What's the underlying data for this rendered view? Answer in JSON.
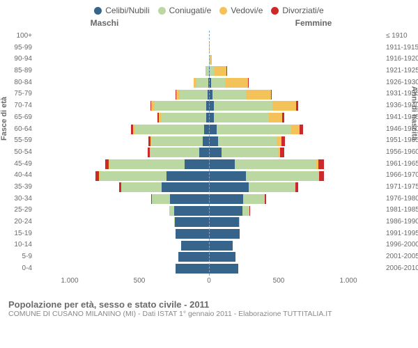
{
  "legend": {
    "items": [
      {
        "label": "Celibi/Nubili",
        "color": "#36648b"
      },
      {
        "label": "Coniugati/e",
        "color": "#bbd8a3"
      },
      {
        "label": "Vedovi/e",
        "color": "#f3c35a"
      },
      {
        "label": "Divorziati/e",
        "color": "#cc2a2a"
      }
    ]
  },
  "sex_labels": {
    "m": "Maschi",
    "f": "Femmine"
  },
  "y_title_left": "Fasce di età",
  "y_title_right": "Anni di nascita",
  "x_axis": {
    "ticks": [
      "1.000",
      "500",
      "0",
      "500",
      "1.000"
    ],
    "max": 1000
  },
  "title": "Popolazione per età, sesso e stato civile - 2011",
  "subtitle": "COMUNE DI CUSANO MILANINO (MI) - Dati ISTAT 1° gennaio 2011 - Elaborazione TUTTITALIA.IT",
  "colors": {
    "celibi": "#36648b",
    "coniugati": "#bbd8a3",
    "vedovi": "#f3c35a",
    "divorziati": "#cc2a2a",
    "grid": "#e0e0e0",
    "center": "#8aa4bd",
    "bg": "#ffffff"
  },
  "rows": [
    {
      "age": "100+",
      "birth": "≤ 1910",
      "m": [
        0,
        0,
        3,
        0
      ],
      "f": [
        0,
        0,
        8,
        0
      ]
    },
    {
      "age": "95-99",
      "birth": "1911-1915",
      "m": [
        0,
        2,
        10,
        0
      ],
      "f": [
        0,
        2,
        35,
        0
      ]
    },
    {
      "age": "90-94",
      "birth": "1916-1920",
      "m": [
        3,
        15,
        22,
        0
      ],
      "f": [
        5,
        18,
        100,
        0
      ]
    },
    {
      "age": "85-89",
      "birth": "1921-1925",
      "m": [
        8,
        95,
        45,
        0
      ],
      "f": [
        10,
        75,
        230,
        3
      ]
    },
    {
      "age": "80-84",
      "birth": "1926-1930",
      "m": [
        12,
        230,
        55,
        3
      ],
      "f": [
        22,
        170,
        280,
        6
      ]
    },
    {
      "age": "75-79",
      "birth": "1931-1935",
      "m": [
        18,
        370,
        45,
        5
      ],
      "f": [
        30,
        320,
        240,
        10
      ]
    },
    {
      "age": "70-74",
      "birth": "1936-1940",
      "m": [
        25,
        510,
        35,
        10
      ],
      "f": [
        40,
        470,
        190,
        15
      ]
    },
    {
      "age": "65-69",
      "birth": "1941-1945",
      "m": [
        30,
        480,
        22,
        12
      ],
      "f": [
        45,
        480,
        115,
        18
      ]
    },
    {
      "age": "60-64",
      "birth": "1946-1950",
      "m": [
        45,
        590,
        15,
        18
      ],
      "f": [
        60,
        580,
        70,
        25
      ]
    },
    {
      "age": "55-59",
      "birth": "1951-1955",
      "m": [
        60,
        500,
        8,
        22
      ],
      "f": [
        80,
        510,
        40,
        30
      ]
    },
    {
      "age": "50-54",
      "birth": "1956-1960",
      "m": [
        95,
        470,
        5,
        25
      ],
      "f": [
        110,
        490,
        22,
        35
      ]
    },
    {
      "age": "45-49",
      "birth": "1961-1965",
      "m": [
        180,
        560,
        3,
        30
      ],
      "f": [
        180,
        580,
        12,
        40
      ]
    },
    {
      "age": "40-44",
      "birth": "1966-1970",
      "m": [
        300,
        480,
        2,
        25
      ],
      "f": [
        260,
        510,
        8,
        35
      ]
    },
    {
      "age": "35-39",
      "birth": "1971-1975",
      "m": [
        380,
        320,
        0,
        18
      ],
      "f": [
        320,
        370,
        3,
        22
      ]
    },
    {
      "age": "30-34",
      "birth": "1976-1980",
      "m": [
        390,
        180,
        0,
        8
      ],
      "f": [
        340,
        220,
        0,
        12
      ]
    },
    {
      "age": "25-29",
      "birth": "1981-1985",
      "m": [
        420,
        55,
        0,
        2
      ],
      "f": [
        400,
        80,
        0,
        3
      ]
    },
    {
      "age": "20-24",
      "birth": "1986-1990",
      "m": [
        440,
        8,
        0,
        0
      ],
      "f": [
        410,
        10,
        0,
        0
      ]
    },
    {
      "age": "15-19",
      "birth": "1991-1995",
      "m": [
        440,
        0,
        0,
        0
      ],
      "f": [
        420,
        0,
        0,
        0
      ]
    },
    {
      "age": "10-14",
      "birth": "1996-2000",
      "m": [
        400,
        0,
        0,
        0
      ],
      "f": [
        370,
        0,
        0,
        0
      ]
    },
    {
      "age": "5-9",
      "birth": "2001-2005",
      "m": [
        420,
        0,
        0,
        0
      ],
      "f": [
        390,
        0,
        0,
        0
      ]
    },
    {
      "age": "0-4",
      "birth": "2006-2010",
      "m": [
        440,
        0,
        0,
        0
      ],
      "f": [
        410,
        0,
        0,
        0
      ]
    }
  ]
}
